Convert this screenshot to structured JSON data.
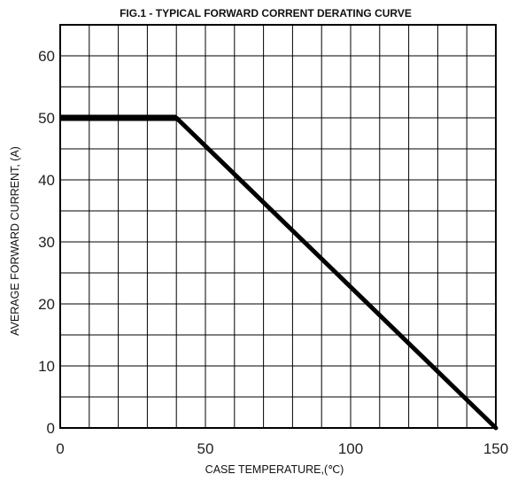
{
  "chart_data": {
    "type": "line",
    "title": "FIG.1 - TYPICAL FORWARD CORRENT DERATING CURVE",
    "xlabel": "CASE TEMPERATURE,(℃)",
    "ylabel": "AVERAGE FORWARD CURRENT, (A)",
    "xlim": [
      0,
      150
    ],
    "ylim": [
      0,
      65
    ],
    "x_gridlines": [
      0,
      10,
      20,
      30,
      40,
      50,
      60,
      70,
      80,
      90,
      100,
      110,
      120,
      130,
      140,
      150
    ],
    "y_gridlines": [
      0,
      5,
      10,
      15,
      20,
      25,
      30,
      35,
      40,
      45,
      50,
      55,
      60,
      65
    ],
    "xticks": [
      {
        "value": 0,
        "label": "0"
      },
      {
        "value": 50,
        "label": "50"
      },
      {
        "value": 100,
        "label": "100"
      },
      {
        "value": 150,
        "label": "150"
      }
    ],
    "yticks": [
      {
        "value": 0,
        "label": "0"
      },
      {
        "value": 10,
        "label": "10"
      },
      {
        "value": 20,
        "label": "20"
      },
      {
        "value": 30,
        "label": "30"
      },
      {
        "value": 40,
        "label": "40"
      },
      {
        "value": 50,
        "label": "50"
      },
      {
        "value": 60,
        "label": "60"
      }
    ],
    "grid": true,
    "series": [
      {
        "segments": [
          {
            "x": [
              0,
              40
            ],
            "y": [
              50,
              50
            ],
            "weight": "heavy"
          },
          {
            "x": [
              40,
              150
            ],
            "y": [
              50,
              0
            ],
            "weight": "normal"
          }
        ]
      }
    ]
  }
}
